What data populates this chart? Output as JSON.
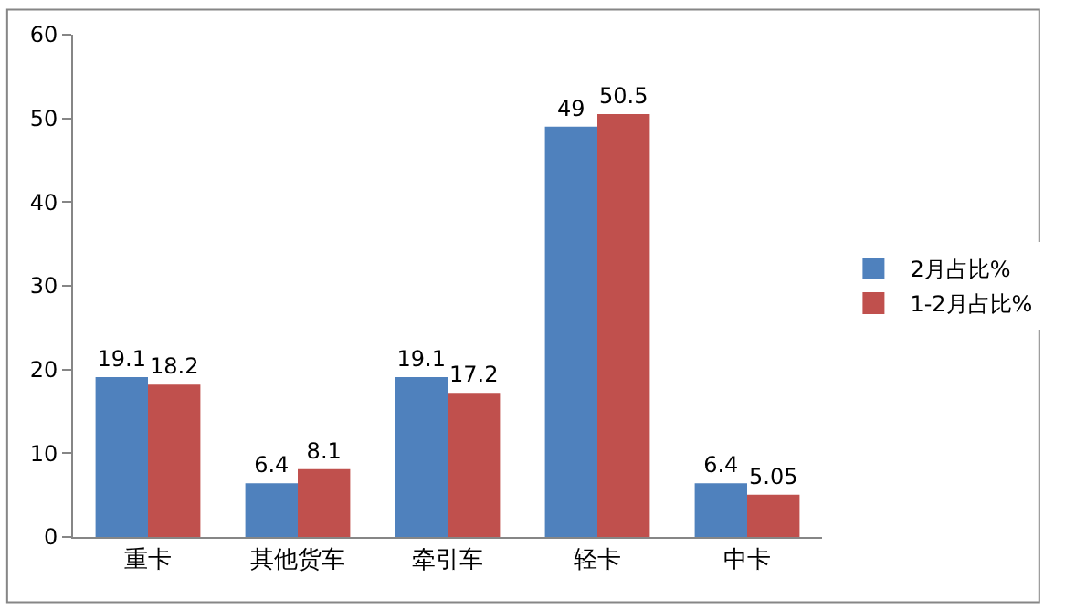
{
  "chart_data": {
    "type": "bar",
    "categories": [
      "重卡",
      "其他货车",
      "牵引车",
      "轻卡",
      "中卡"
    ],
    "series": [
      {
        "name": "2月占比%",
        "color": "#4f81bd",
        "values": [
          19.1,
          6.4,
          19.1,
          49,
          6.4
        ]
      },
      {
        "name": "1-2月占比%",
        "color": "#c0504d",
        "values": [
          18.2,
          8.1,
          17.2,
          50.5,
          5.05
        ]
      }
    ],
    "ylim": [
      0,
      60
    ],
    "yticks": [
      0,
      10,
      20,
      30,
      40,
      50,
      60
    ],
    "data_labels": true,
    "legend": "right"
  }
}
